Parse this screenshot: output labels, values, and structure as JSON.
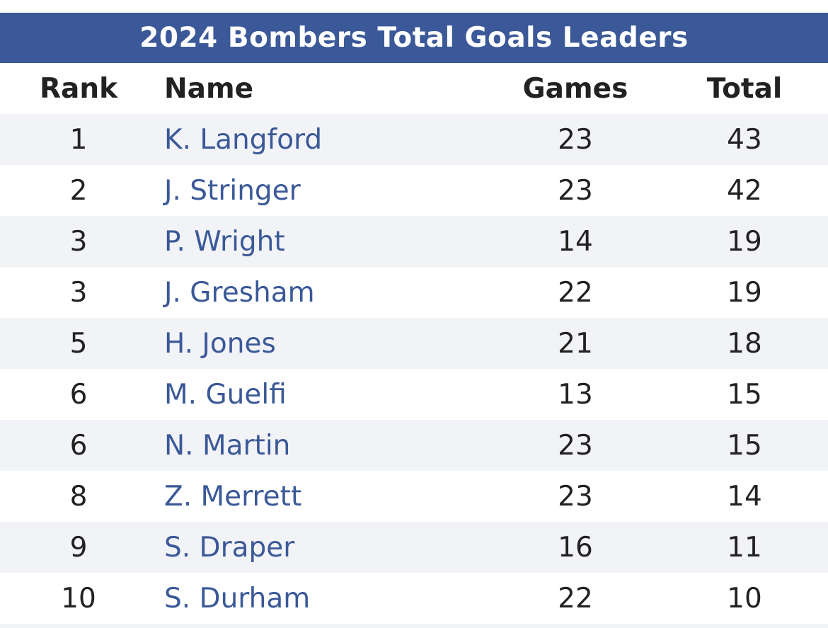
{
  "title": "2024 Bombers Total Goals Leaders",
  "columns": {
    "rank": "Rank",
    "name": "Name",
    "games": "Games",
    "total": "Total"
  },
  "rows": [
    {
      "rank": "1",
      "name": "K. Langford",
      "games": "23",
      "total": "43"
    },
    {
      "rank": "2",
      "name": "J. Stringer",
      "games": "23",
      "total": "42"
    },
    {
      "rank": "3",
      "name": "P. Wright",
      "games": "14",
      "total": "19"
    },
    {
      "rank": "3",
      "name": "J. Gresham",
      "games": "22",
      "total": "19"
    },
    {
      "rank": "5",
      "name": "H. Jones",
      "games": "21",
      "total": "18"
    },
    {
      "rank": "6",
      "name": "M. Guelfi",
      "games": "13",
      "total": "15"
    },
    {
      "rank": "6",
      "name": "N. Martin",
      "games": "23",
      "total": "15"
    },
    {
      "rank": "8",
      "name": "Z. Merrett",
      "games": "23",
      "total": "14"
    },
    {
      "rank": "9",
      "name": "S. Draper",
      "games": "16",
      "total": "11"
    },
    {
      "rank": "10",
      "name": "S. Durham",
      "games": "22",
      "total": "10"
    }
  ],
  "colors": {
    "header_bg": "#3b5998",
    "link": "#3b5998",
    "stripe": "#f2f3f7"
  }
}
